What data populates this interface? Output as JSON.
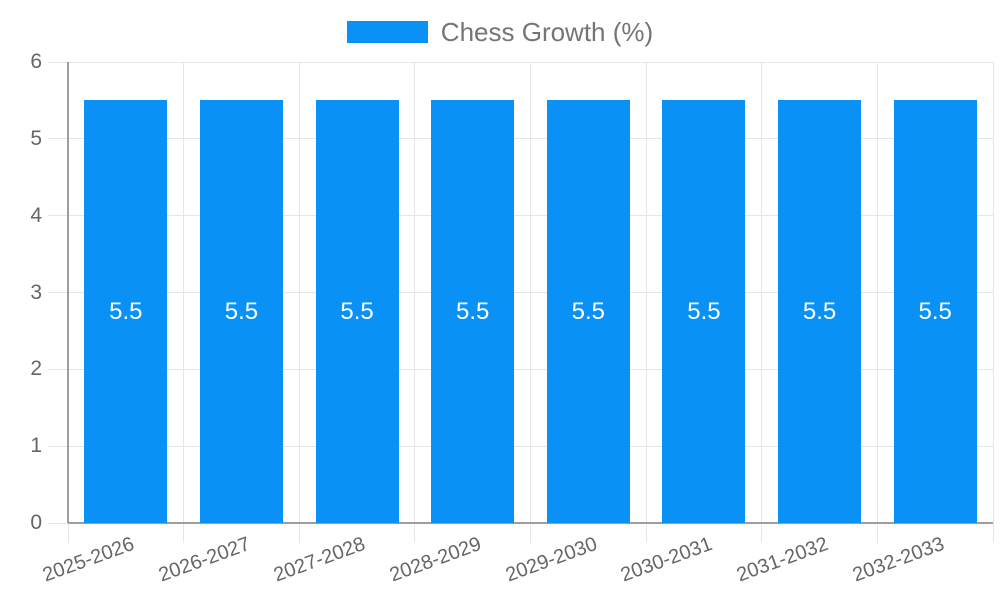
{
  "chart_data": {
    "type": "bar",
    "title": "Chess Growth (%)",
    "categories": [
      "2025-2026",
      "2026-2027",
      "2027-2028",
      "2028-2029",
      "2029-2030",
      "2030-2031",
      "2031-2032",
      "2032-2033"
    ],
    "series": [
      {
        "name": "Chess Growth (%)",
        "values": [
          5.5,
          5.5,
          5.5,
          5.5,
          5.5,
          5.5,
          5.5,
          5.5
        ]
      }
    ],
    "bar_labels": [
      "5.5",
      "5.5",
      "5.5",
      "5.5",
      "5.5",
      "5.5",
      "5.5",
      "5.5"
    ],
    "xlabel": "",
    "ylabel": "",
    "ylim": [
      0,
      6
    ],
    "yticks": [
      0,
      1,
      2,
      3,
      4,
      5,
      6
    ],
    "grid": true,
    "legend_position": "top-center",
    "x_label_rotation_deg": -20,
    "colors": {
      "bar": "#0A91F5",
      "value_label": "#FFFFFF",
      "grid": "#E6E6E6",
      "axis": "#9E9E9E",
      "axis_text": "#666666",
      "legend_text": "#757575"
    }
  }
}
